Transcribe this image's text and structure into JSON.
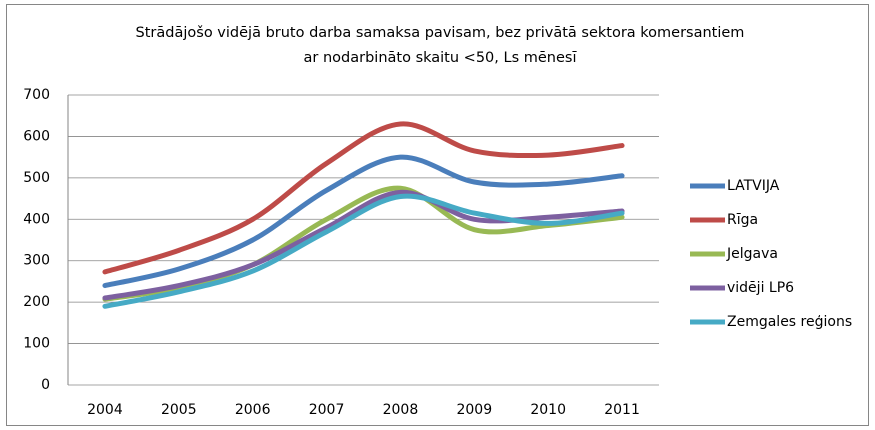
{
  "chart_data": {
    "type": "line",
    "title": [
      "Strādājošo vidējā bruto darba samaksa pavisam, bez privātā sektora komersantiem",
      "ar nodarbināto skaitu <50, Ls mēnesī"
    ],
    "categories": [
      "2004",
      "2005",
      "2006",
      "2007",
      "2008",
      "2009",
      "2010",
      "2011"
    ],
    "series": [
      {
        "name": "LATVIJA",
        "color": "#4a7ebb",
        "values": [
          240,
          280,
          350,
          470,
          550,
          490,
          485,
          505
        ]
      },
      {
        "name": "Rīga",
        "color": "#be4b48",
        "values": [
          273,
          325,
          400,
          535,
          630,
          565,
          555,
          578
        ]
      },
      {
        "name": "Jelgava",
        "color": "#98b954",
        "values": [
          207,
          235,
          290,
          400,
          475,
          375,
          385,
          405
        ]
      },
      {
        "name": "vidēji LP6",
        "color": "#7d60a0",
        "values": [
          210,
          240,
          290,
          380,
          465,
          400,
          405,
          420
        ]
      },
      {
        "name": "Zemgales reģions",
        "color": "#46aac5",
        "values": [
          190,
          225,
          275,
          370,
          455,
          415,
          390,
          415
        ]
      }
    ],
    "ylim": [
      0,
      700
    ],
    "yticks": [
      0,
      100,
      200,
      300,
      400,
      500,
      600,
      700
    ],
    "grid": true,
    "legend": "right",
    "smooth": true
  }
}
